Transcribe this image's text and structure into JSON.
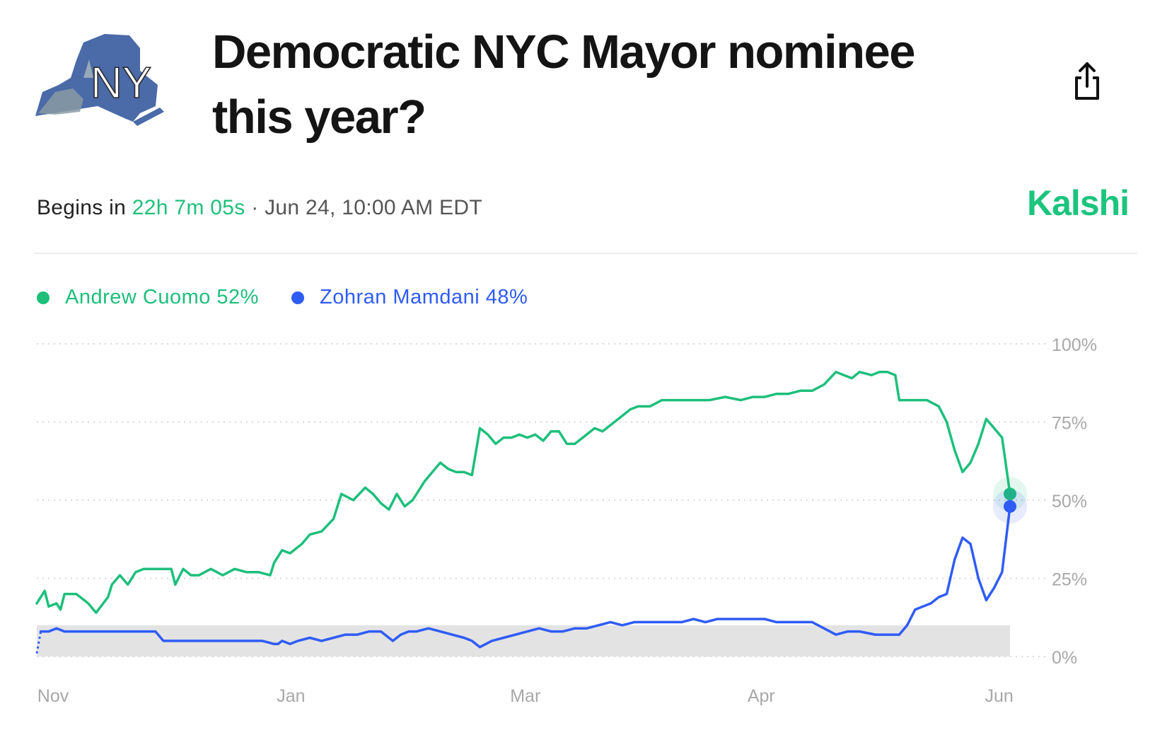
{
  "market": {
    "title": "Democratic NYC Mayor nominee this year?",
    "logo_text": "NY",
    "begins_label": "Begins in",
    "countdown": "22h 7m 05s",
    "separator": "·",
    "start_date": "Jun 24, 10:00 AM EDT",
    "brand": "Kalshi"
  },
  "colors": {
    "cuomo": "#1dbf7b",
    "mamdani": "#2f5cf5",
    "brand": "#1cc47e",
    "grid": "#d9d9d9",
    "band": "#e3e3e3"
  },
  "icons": {
    "share": "share-icon",
    "logo": "new-york-state-icon"
  },
  "legend": [
    {
      "label": "Andrew Cuomo 52%",
      "color": "#1dbf7b"
    },
    {
      "label": "Zohran Mamdani 48%",
      "color": "#2f5cf5"
    }
  ],
  "chart_data": {
    "type": "line",
    "title": "Democratic NYC Mayor nominee this year?",
    "xlabel": "",
    "ylabel": "",
    "ylim": [
      0,
      100
    ],
    "y_ticks": [
      100,
      75,
      50,
      25,
      0
    ],
    "y_tick_labels": [
      "100%",
      "75%",
      "50%",
      "25%",
      "0%"
    ],
    "x_labels": [
      {
        "label": "Nov",
        "t": 0.5
      },
      {
        "label": "Jan",
        "t": 61
      },
      {
        "label": "Mar",
        "t": 120
      },
      {
        "label": "Apr",
        "t": 180
      },
      {
        "label": "Jun",
        "t": 240
      }
    ],
    "x_range": [
      0,
      242
    ],
    "low_band_max": 10,
    "legend_position": "top-left",
    "series": [
      {
        "name": "Andrew Cuomo",
        "final": 52,
        "points": [
          [
            0,
            17
          ],
          [
            2,
            21
          ],
          [
            3,
            16
          ],
          [
            5,
            17
          ],
          [
            6,
            15
          ],
          [
            7,
            20
          ],
          [
            10,
            20
          ],
          [
            12,
            18
          ],
          [
            13,
            17
          ],
          [
            15,
            14
          ],
          [
            18,
            19
          ],
          [
            19,
            23
          ],
          [
            21,
            26
          ],
          [
            23,
            23
          ],
          [
            25,
            27
          ],
          [
            27,
            28
          ],
          [
            32,
            28
          ],
          [
            34,
            28
          ],
          [
            35,
            23
          ],
          [
            37,
            28
          ],
          [
            39,
            26
          ],
          [
            41,
            26
          ],
          [
            44,
            28
          ],
          [
            47,
            26
          ],
          [
            50,
            28
          ],
          [
            53,
            27
          ],
          [
            56,
            27
          ],
          [
            59,
            26
          ],
          [
            60,
            30
          ],
          [
            62,
            34
          ],
          [
            64,
            33
          ],
          [
            67,
            36
          ],
          [
            69,
            39
          ],
          [
            72,
            40
          ],
          [
            75,
            44
          ],
          [
            77,
            52
          ],
          [
            80,
            50
          ],
          [
            83,
            54
          ],
          [
            85,
            52
          ],
          [
            87,
            49
          ],
          [
            89,
            47
          ],
          [
            91,
            52
          ],
          [
            93,
            48
          ],
          [
            95,
            50
          ],
          [
            98,
            56
          ],
          [
            100,
            59
          ],
          [
            102,
            62
          ],
          [
            104,
            60
          ],
          [
            106,
            59
          ],
          [
            108,
            59
          ],
          [
            110,
            58
          ],
          [
            112,
            73
          ],
          [
            114,
            71
          ],
          [
            116,
            68
          ],
          [
            118,
            70
          ],
          [
            120,
            70
          ],
          [
            122,
            71
          ],
          [
            124,
            70
          ],
          [
            126,
            71
          ],
          [
            128,
            69
          ],
          [
            130,
            72
          ],
          [
            132,
            72
          ],
          [
            134,
            68
          ],
          [
            136,
            68
          ],
          [
            138,
            70
          ],
          [
            141,
            73
          ],
          [
            143,
            72
          ],
          [
            146,
            75
          ],
          [
            148,
            77
          ],
          [
            150,
            79
          ],
          [
            152,
            80
          ],
          [
            155,
            80
          ],
          [
            158,
            82
          ],
          [
            162,
            82
          ],
          [
            166,
            82
          ],
          [
            170,
            82
          ],
          [
            174,
            83
          ],
          [
            178,
            82
          ],
          [
            181,
            83
          ],
          [
            184,
            83
          ],
          [
            187,
            84
          ],
          [
            190,
            84
          ],
          [
            193,
            85
          ],
          [
            196,
            85
          ],
          [
            199,
            87
          ],
          [
            202,
            91
          ],
          [
            204,
            90
          ],
          [
            206,
            89
          ],
          [
            208,
            91
          ],
          [
            211,
            90
          ],
          [
            213,
            91
          ],
          [
            215,
            91
          ],
          [
            217,
            90
          ],
          [
            218,
            82
          ],
          [
            221,
            82
          ],
          [
            223,
            82
          ],
          [
            225,
            82
          ],
          [
            228,
            80
          ],
          [
            230,
            75
          ],
          [
            232,
            66
          ],
          [
            234,
            59
          ],
          [
            236,
            62
          ],
          [
            238,
            68
          ],
          [
            240,
            76
          ],
          [
            242,
            73
          ],
          [
            244,
            70
          ],
          [
            246,
            52
          ]
        ]
      },
      {
        "name": "Zohran Mamdani",
        "final": 48,
        "points": [
          [
            0,
            1
          ],
          [
            1,
            8
          ],
          [
            3,
            8
          ],
          [
            5,
            9
          ],
          [
            7,
            8
          ],
          [
            10,
            8
          ],
          [
            15,
            8
          ],
          [
            20,
            8
          ],
          [
            25,
            8
          ],
          [
            30,
            8
          ],
          [
            32,
            5
          ],
          [
            40,
            5
          ],
          [
            50,
            5
          ],
          [
            57,
            5
          ],
          [
            60,
            4
          ],
          [
            61,
            4
          ],
          [
            62,
            5
          ],
          [
            64,
            4
          ],
          [
            66,
            5
          ],
          [
            69,
            6
          ],
          [
            72,
            5
          ],
          [
            75,
            6
          ],
          [
            78,
            7
          ],
          [
            81,
            7
          ],
          [
            84,
            8
          ],
          [
            87,
            8
          ],
          [
            90,
            5
          ],
          [
            92,
            7
          ],
          [
            94,
            8
          ],
          [
            96,
            8
          ],
          [
            99,
            9
          ],
          [
            102,
            8
          ],
          [
            105,
            7
          ],
          [
            108,
            6
          ],
          [
            110,
            5
          ],
          [
            112,
            3
          ],
          [
            115,
            5
          ],
          [
            118,
            6
          ],
          [
            121,
            7
          ],
          [
            124,
            8
          ],
          [
            127,
            9
          ],
          [
            130,
            8
          ],
          [
            133,
            8
          ],
          [
            136,
            9
          ],
          [
            139,
            9
          ],
          [
            142,
            10
          ],
          [
            145,
            11
          ],
          [
            148,
            10
          ],
          [
            151,
            11
          ],
          [
            154,
            11
          ],
          [
            157,
            11
          ],
          [
            160,
            11
          ],
          [
            163,
            11
          ],
          [
            166,
            12
          ],
          [
            169,
            11
          ],
          [
            172,
            12
          ],
          [
            175,
            12
          ],
          [
            178,
            12
          ],
          [
            181,
            12
          ],
          [
            184,
            12
          ],
          [
            187,
            11
          ],
          [
            190,
            11
          ],
          [
            193,
            11
          ],
          [
            196,
            11
          ],
          [
            199,
            9
          ],
          [
            202,
            7
          ],
          [
            205,
            8
          ],
          [
            208,
            8
          ],
          [
            212,
            7
          ],
          [
            215,
            7
          ],
          [
            218,
            7
          ],
          [
            220,
            10
          ],
          [
            222,
            15
          ],
          [
            224,
            16
          ],
          [
            226,
            17
          ],
          [
            228,
            19
          ],
          [
            230,
            20
          ],
          [
            232,
            31
          ],
          [
            234,
            38
          ],
          [
            236,
            36
          ],
          [
            238,
            25
          ],
          [
            240,
            18
          ],
          [
            242,
            22
          ],
          [
            244,
            27
          ],
          [
            246,
            48
          ]
        ]
      }
    ]
  }
}
